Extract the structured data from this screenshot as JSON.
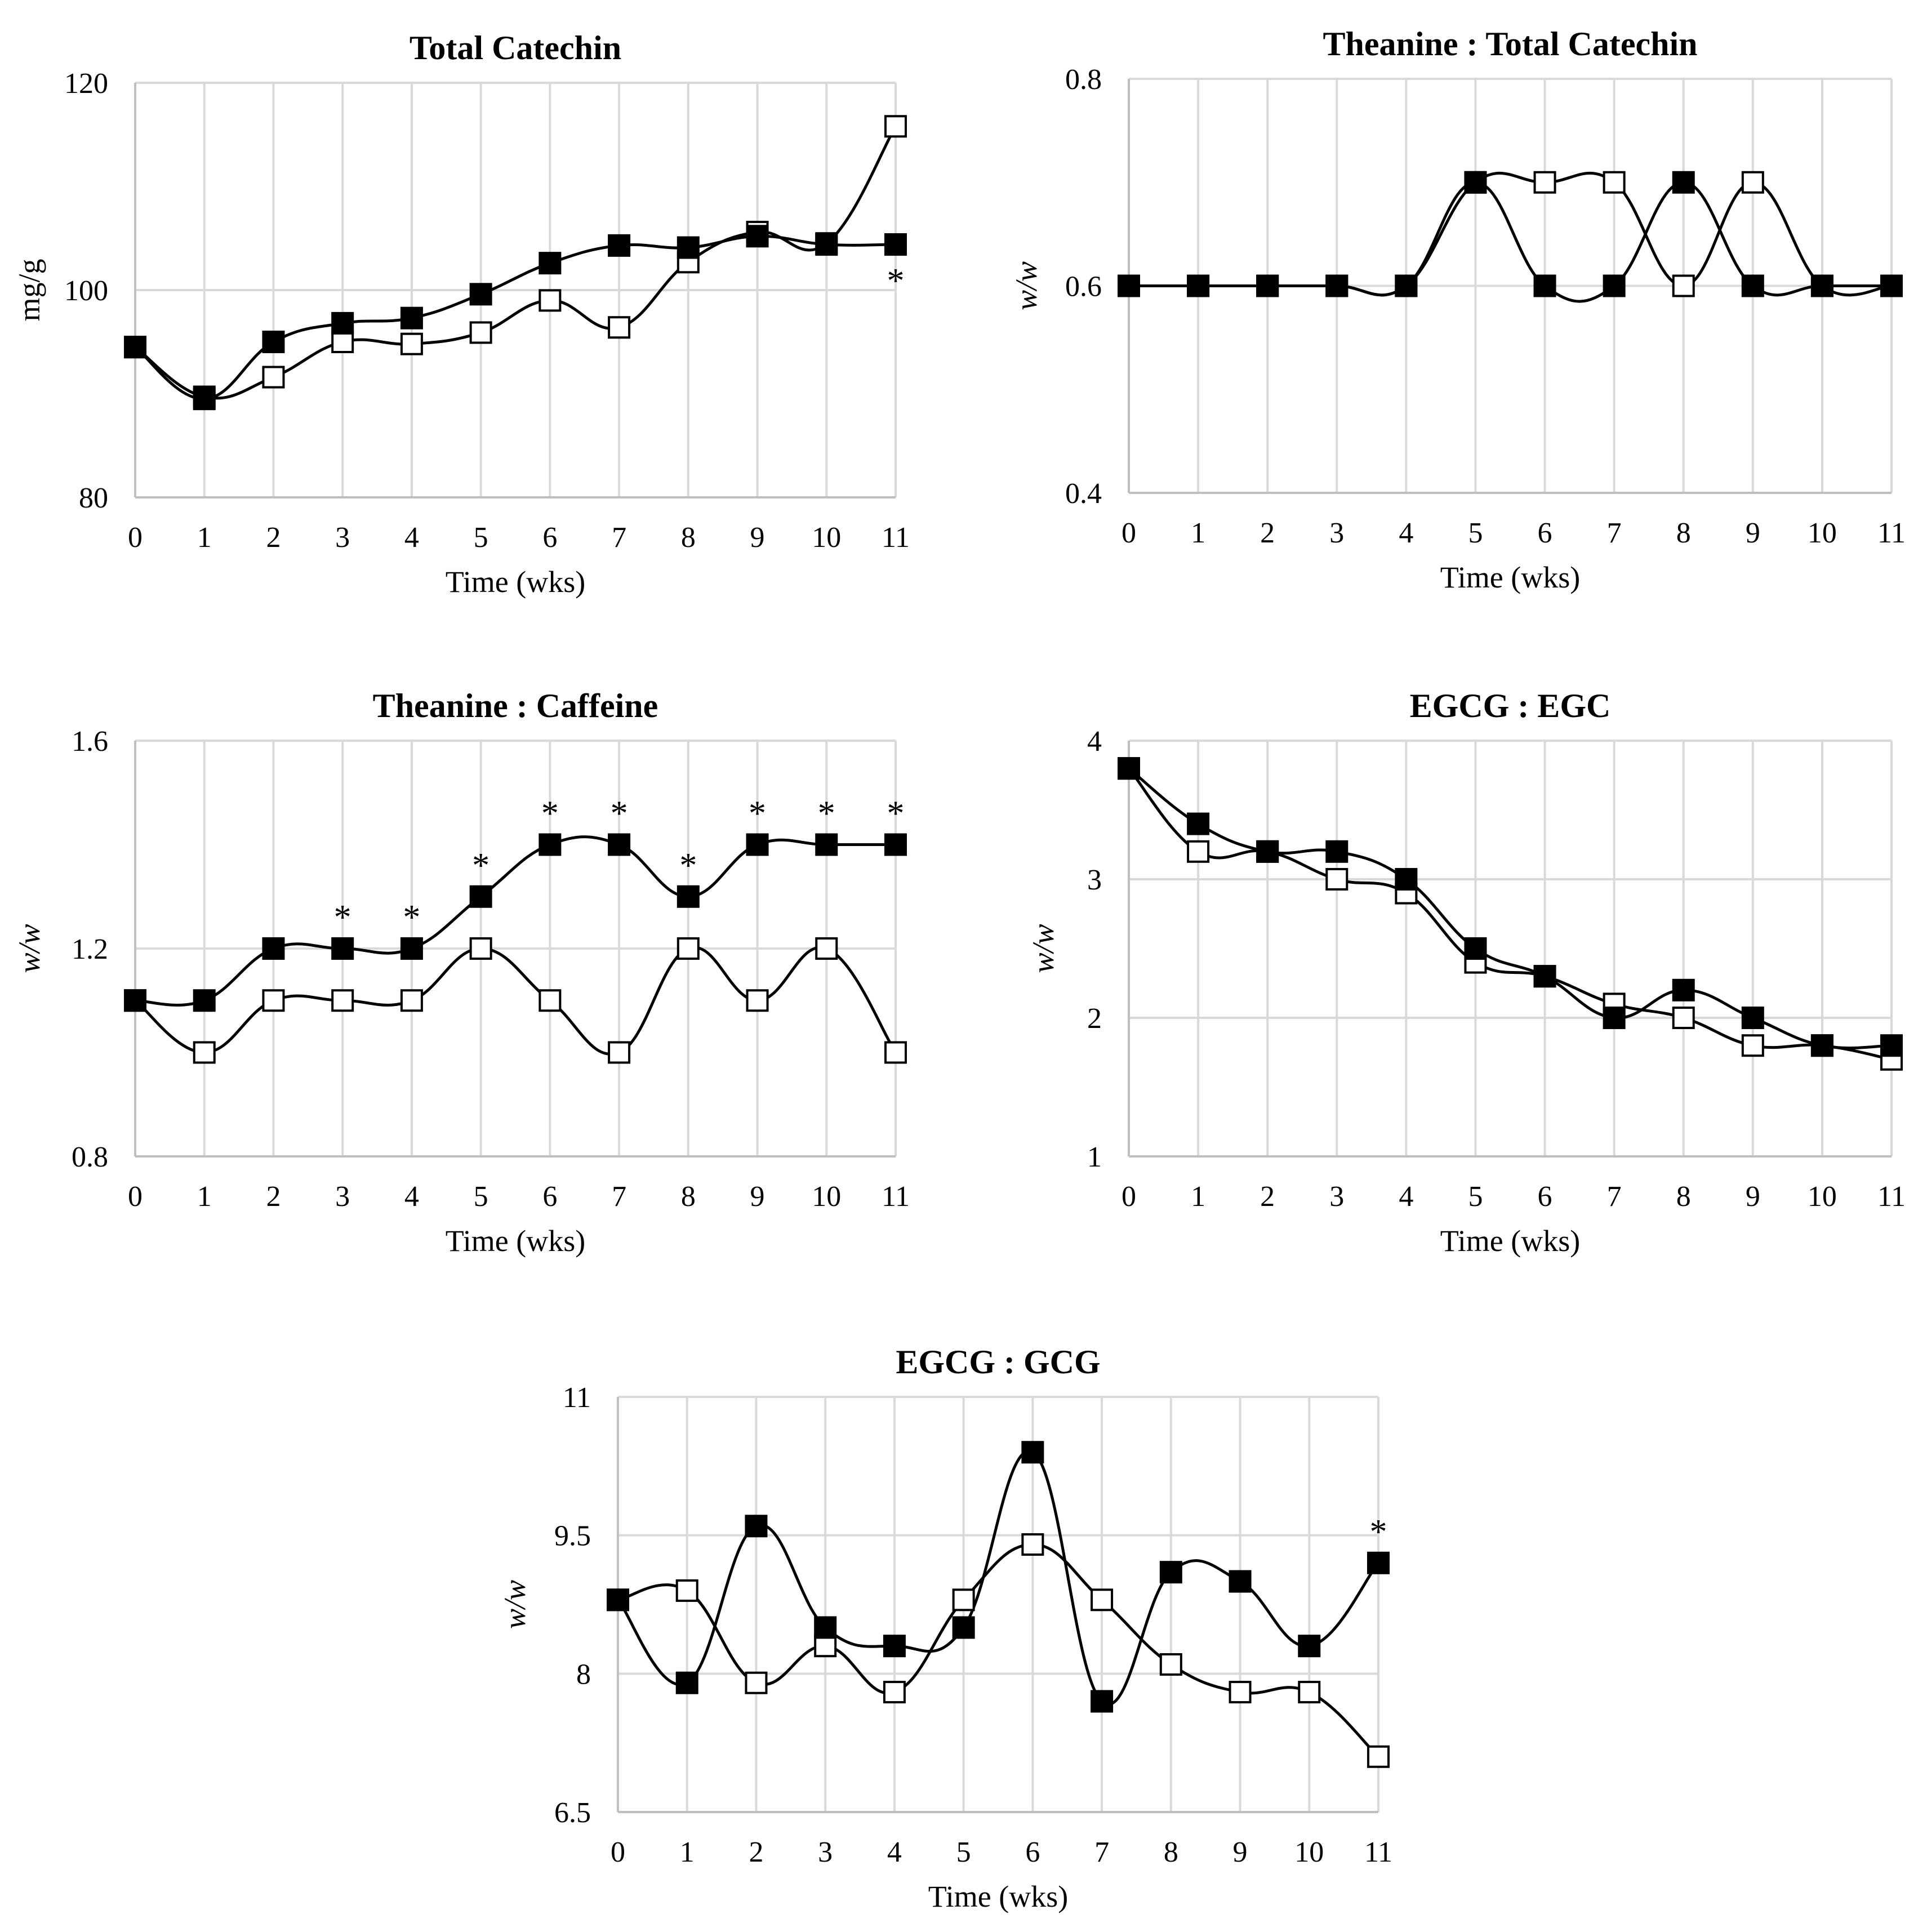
{
  "chart_data": [
    {
      "type": "line",
      "title": "Total Catechin",
      "xlabel": "Time (wks)",
      "ylabel": "mg/g",
      "ylabel_italic": false,
      "x": [
        0,
        1,
        2,
        3,
        4,
        5,
        6,
        7,
        8,
        9,
        10,
        11
      ],
      "ylim": [
        80,
        120
      ],
      "yticks": [
        80,
        100,
        120
      ],
      "ytick_labels": [
        "80",
        "100",
        "120"
      ],
      "series": [
        {
          "name": "filled",
          "marker": "filled-square",
          "values": [
            94.5,
            89.5,
            95,
            96.8,
            97.3,
            99.6,
            102.6,
            104.3,
            104.1,
            105.2,
            104.4,
            104.4
          ]
        },
        {
          "name": "open",
          "marker": "open-square",
          "values": [
            94.5,
            89.7,
            91.6,
            95,
            94.8,
            95.9,
            99,
            96.4,
            102.7,
            105.6,
            104.5,
            115.8
          ]
        }
      ],
      "annotations": [
        {
          "x": 11,
          "label": "*",
          "anchor": "below-filled"
        }
      ]
    },
    {
      "type": "line",
      "title": "Theanine : Total Catechin",
      "xlabel": "Time (wks)",
      "ylabel": "w/w",
      "ylabel_italic": true,
      "x": [
        0,
        1,
        2,
        3,
        4,
        5,
        6,
        7,
        8,
        9,
        10,
        11
      ],
      "ylim": [
        0.4,
        0.8
      ],
      "yticks": [
        0.4,
        0.6,
        0.8
      ],
      "ytick_labels": [
        "0.4",
        "0.6",
        "0.8"
      ],
      "series": [
        {
          "name": "filled",
          "marker": "filled-square",
          "values": [
            0.6,
            0.6,
            0.6,
            0.6,
            0.6,
            0.7,
            0.6,
            0.6,
            0.7,
            0.6,
            0.6,
            0.6
          ]
        },
        {
          "name": "open",
          "marker": "open-square",
          "values": [
            0.6,
            0.6,
            0.6,
            0.6,
            0.6,
            0.7,
            0.7,
            0.7,
            0.6,
            0.7,
            0.6,
            0.6
          ]
        }
      ],
      "annotations": []
    },
    {
      "type": "line",
      "title": "Theanine : Caffeine",
      "xlabel": "Time (wks)",
      "ylabel": "w/w",
      "ylabel_italic": true,
      "x": [
        0,
        1,
        2,
        3,
        4,
        5,
        6,
        7,
        8,
        9,
        10,
        11
      ],
      "ylim": [
        0.8,
        1.6
      ],
      "yticks": [
        0.8,
        1.2,
        1.6
      ],
      "ytick_labels": [
        "0.8",
        "1.2",
        "1.6"
      ],
      "series": [
        {
          "name": "filled",
          "marker": "filled-square",
          "values": [
            1.1,
            1.1,
            1.2,
            1.2,
            1.2,
            1.3,
            1.4,
            1.4,
            1.3,
            1.4,
            1.4,
            1.4
          ]
        },
        {
          "name": "open",
          "marker": "open-square",
          "values": [
            1.1,
            1.0,
            1.1,
            1.1,
            1.1,
            1.2,
            1.1,
            1.0,
            1.2,
            1.1,
            1.2,
            1.0
          ]
        }
      ],
      "annotations": [
        {
          "x": 3,
          "label": "*",
          "anchor": "above-filled"
        },
        {
          "x": 4,
          "label": "*",
          "anchor": "above-filled"
        },
        {
          "x": 5,
          "label": "*",
          "anchor": "above-filled"
        },
        {
          "x": 6,
          "label": "*",
          "anchor": "above-filled"
        },
        {
          "x": 7,
          "label": "*",
          "anchor": "above-filled"
        },
        {
          "x": 8,
          "label": "*",
          "anchor": "above-filled"
        },
        {
          "x": 9,
          "label": "*",
          "anchor": "above-filled"
        },
        {
          "x": 10,
          "label": "*",
          "anchor": "above-filled"
        },
        {
          "x": 11,
          "label": "*",
          "anchor": "above-filled"
        }
      ]
    },
    {
      "type": "line",
      "title": "EGCG : EGC",
      "xlabel": "Time (wks)",
      "ylabel": "w/w",
      "ylabel_italic": true,
      "x": [
        0,
        1,
        2,
        3,
        4,
        5,
        6,
        7,
        8,
        9,
        10,
        11
      ],
      "ylim": [
        1,
        4
      ],
      "yticks": [
        1,
        2,
        3,
        4
      ],
      "ytick_labels": [
        "1",
        "2",
        "3",
        "4"
      ],
      "series": [
        {
          "name": "filled",
          "marker": "filled-square",
          "values": [
            3.8,
            3.4,
            3.2,
            3.2,
            3.0,
            2.5,
            2.3,
            2.0,
            2.2,
            2.0,
            1.8,
            1.8
          ]
        },
        {
          "name": "open",
          "marker": "open-square",
          "values": [
            3.8,
            3.2,
            3.2,
            3.0,
            2.9,
            2.4,
            2.3,
            2.1,
            2.0,
            1.8,
            1.8,
            1.7
          ]
        }
      ],
      "annotations": []
    },
    {
      "type": "line",
      "title": "EGCG : GCG",
      "xlabel": "Time (wks)",
      "ylabel": "w/w",
      "ylabel_italic": true,
      "x": [
        0,
        1,
        2,
        3,
        4,
        5,
        6,
        7,
        8,
        9,
        10,
        11
      ],
      "ylim": [
        6.5,
        11
      ],
      "yticks": [
        6.5,
        8,
        9.5,
        11
      ],
      "ytick_labels": [
        "6.5",
        "8",
        "9.5",
        "11"
      ],
      "series": [
        {
          "name": "filled",
          "marker": "filled-square",
          "values": [
            8.8,
            7.9,
            9.6,
            8.5,
            8.3,
            8.5,
            10.4,
            7.7,
            9.1,
            9.0,
            8.3,
            9.2
          ]
        },
        {
          "name": "open",
          "marker": "open-square",
          "values": [
            8.8,
            8.9,
            7.9,
            8.3,
            7.8,
            8.8,
            9.4,
            8.8,
            8.1,
            7.8,
            7.8,
            7.1
          ]
        }
      ],
      "annotations": [
        {
          "x": 11,
          "label": "*",
          "anchor": "above-filled"
        }
      ]
    }
  ]
}
